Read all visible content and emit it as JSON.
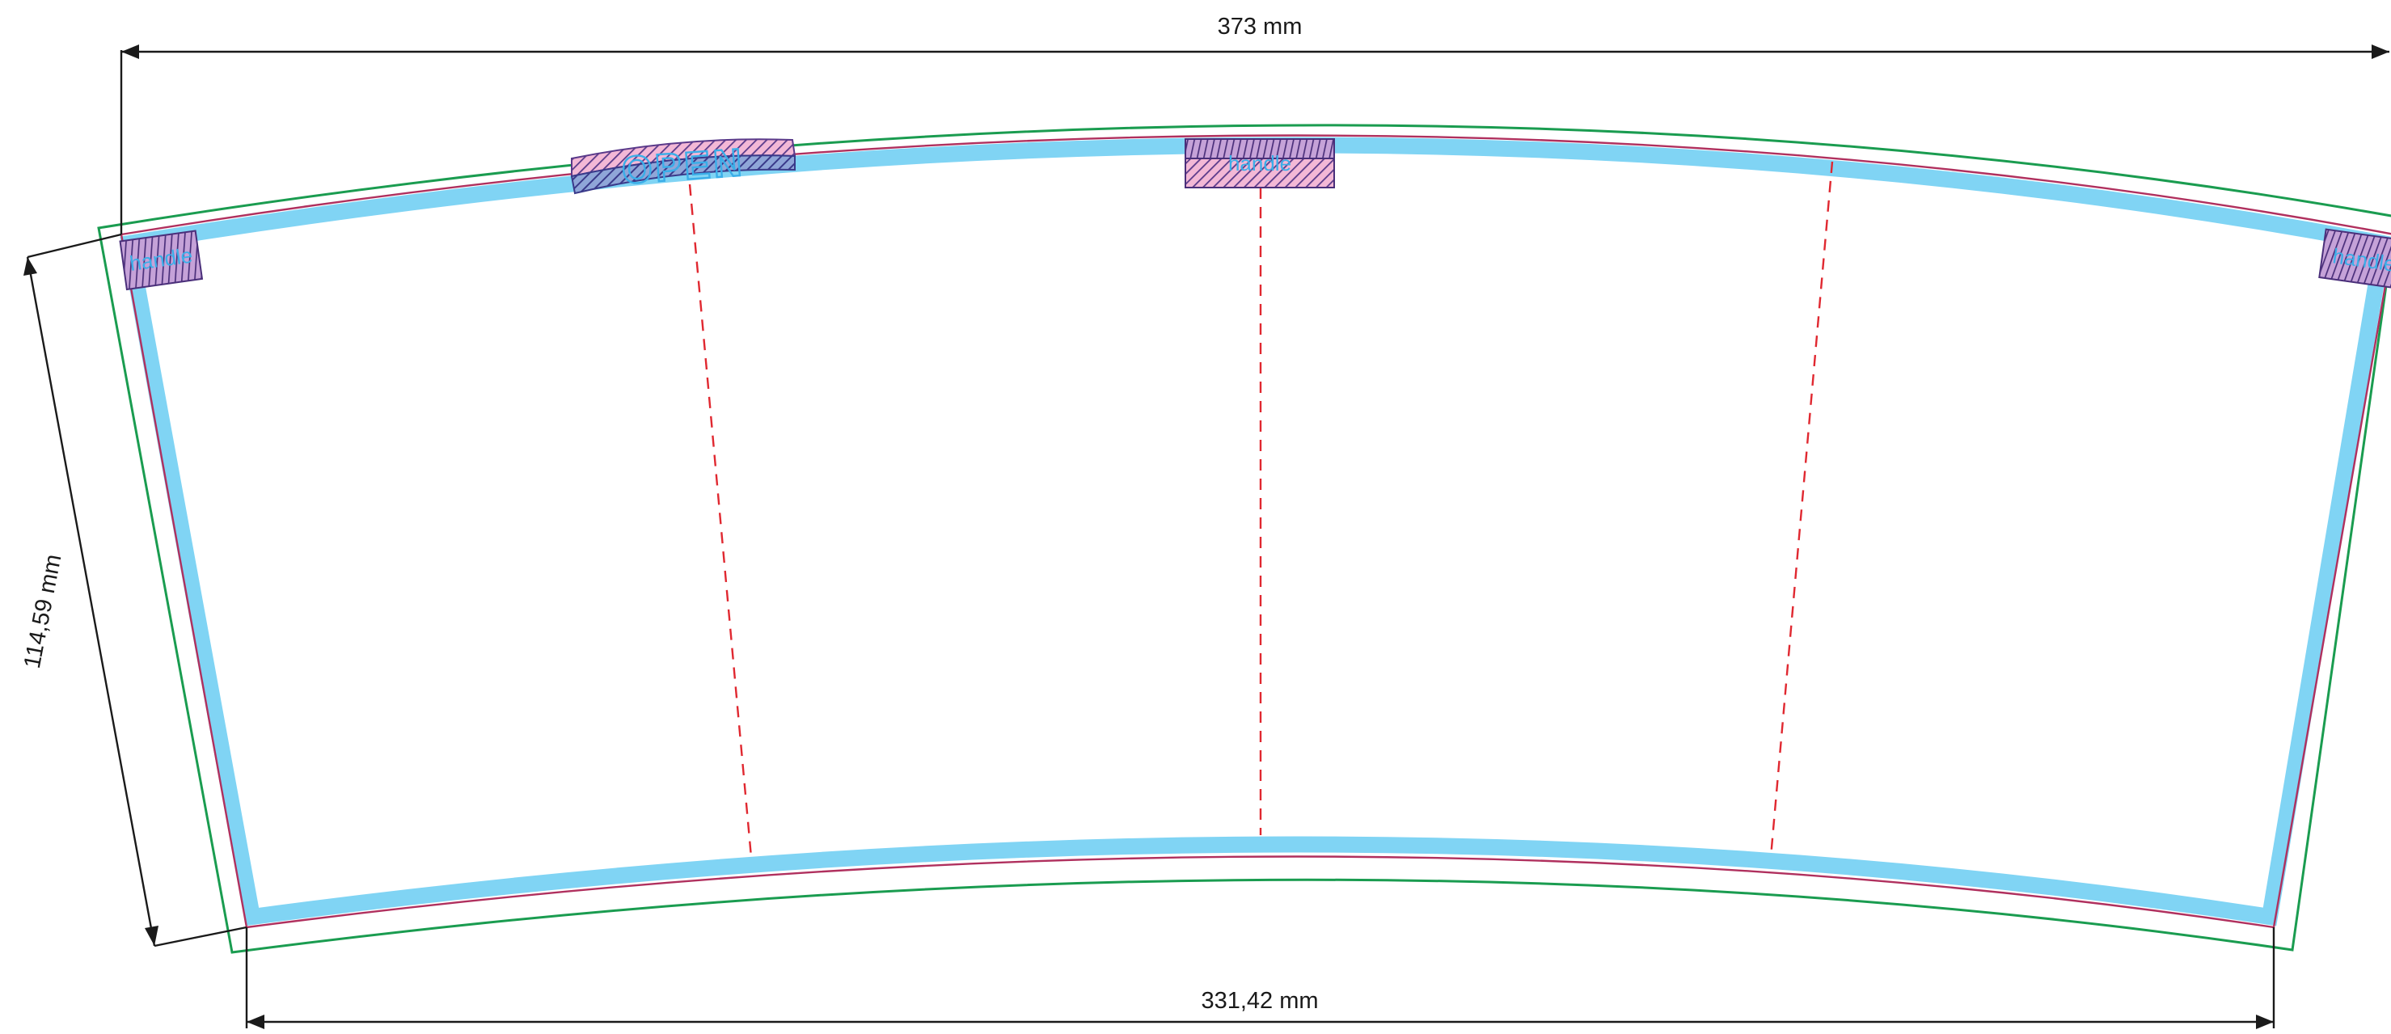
{
  "dimensions": {
    "top_width": "373 mm",
    "bottom_width": "331,42 mm",
    "side_height": "114,59 mm"
  },
  "labels": {
    "handle_center": "handle",
    "handle_left": "handle",
    "handle_right": "handle",
    "open_tab": "OPEN"
  },
  "colors": {
    "bleed_line": "#1a9c50",
    "cut_line": "#b0305e",
    "safe_band": "#80d4f4",
    "fold_line": "#e02830",
    "dimension_line": "#1a1a1a",
    "label_text": "#3aaee8"
  }
}
